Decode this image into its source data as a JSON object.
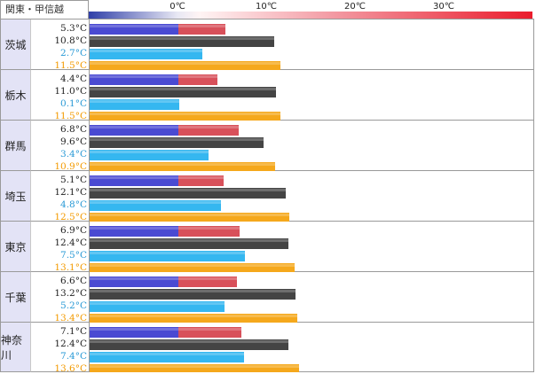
{
  "header": {
    "title": "関東・甲信越"
  },
  "colors": {
    "min_positive": "#d8505a",
    "min_negative": "#4a4ad2",
    "max": "#444444",
    "min_avg": "#35b7f0",
    "max_avg": "#f5a81c",
    "min_avg_text": "#2a9ad6",
    "max_avg_text": "#f39a00",
    "text": "#222222"
  },
  "chart_data": {
    "type": "bar",
    "title": "関東・甲信越",
    "x_axis": {
      "ticks": [
        {
          "value": 0,
          "label": "0℃"
        },
        {
          "value": 10,
          "label": "10℃"
        },
        {
          "value": 20,
          "label": "20℃"
        },
        {
          "value": 30,
          "label": "30℃"
        }
      ],
      "range": [
        -10,
        40
      ]
    },
    "scale_gradient": "blue (cold) to red (warm)",
    "regions": [
      {
        "name": "茨城",
        "values": [
          {
            "series": "min",
            "value": 5.3,
            "label": "5.3°C"
          },
          {
            "series": "max",
            "value": 10.8,
            "label": "10.8°C"
          },
          {
            "series": "min_avg",
            "value": 2.7,
            "label": "2.7°C"
          },
          {
            "series": "max_avg",
            "value": 11.5,
            "label": "11.5°C"
          }
        ]
      },
      {
        "name": "栃木",
        "values": [
          {
            "series": "min",
            "value": 4.4,
            "label": "4.4°C"
          },
          {
            "series": "max",
            "value": 11.0,
            "label": "11.0°C"
          },
          {
            "series": "min_avg",
            "value": 0.1,
            "label": "0.1°C"
          },
          {
            "series": "max_avg",
            "value": 11.5,
            "label": "11.5°C"
          }
        ]
      },
      {
        "name": "群馬",
        "values": [
          {
            "series": "min",
            "value": 6.8,
            "label": "6.8°C"
          },
          {
            "series": "max",
            "value": 9.6,
            "label": "9.6°C"
          },
          {
            "series": "min_avg",
            "value": 3.4,
            "label": "3.4°C"
          },
          {
            "series": "max_avg",
            "value": 10.9,
            "label": "10.9°C"
          }
        ]
      },
      {
        "name": "埼玉",
        "values": [
          {
            "series": "min",
            "value": 5.1,
            "label": "5.1°C"
          },
          {
            "series": "max",
            "value": 12.1,
            "label": "12.1°C"
          },
          {
            "series": "min_avg",
            "value": 4.8,
            "label": "4.8°C"
          },
          {
            "series": "max_avg",
            "value": 12.5,
            "label": "12.5°C"
          }
        ]
      },
      {
        "name": "東京",
        "values": [
          {
            "series": "min",
            "value": 6.9,
            "label": "6.9°C"
          },
          {
            "series": "max",
            "value": 12.4,
            "label": "12.4°C"
          },
          {
            "series": "min_avg",
            "value": 7.5,
            "label": "7.5°C"
          },
          {
            "series": "max_avg",
            "value": 13.1,
            "label": "13.1°C"
          }
        ]
      },
      {
        "name": "千葉",
        "values": [
          {
            "series": "min",
            "value": 6.6,
            "label": "6.6°C"
          },
          {
            "series": "max",
            "value": 13.2,
            "label": "13.2°C"
          },
          {
            "series": "min_avg",
            "value": 5.2,
            "label": "5.2°C"
          },
          {
            "series": "max_avg",
            "value": 13.4,
            "label": "13.4°C"
          }
        ]
      },
      {
        "name": "神奈川",
        "values": [
          {
            "series": "min",
            "value": 7.1,
            "label": "7.1°C"
          },
          {
            "series": "max",
            "value": 12.4,
            "label": "12.4°C"
          },
          {
            "series": "min_avg",
            "value": 7.4,
            "label": "7.4°C"
          },
          {
            "series": "max_avg",
            "value": 13.6,
            "label": "13.6°C"
          }
        ]
      }
    ]
  }
}
